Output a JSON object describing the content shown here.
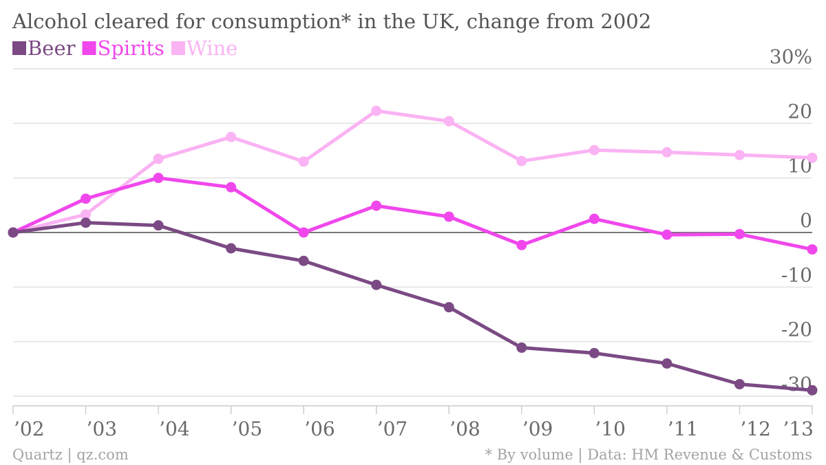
{
  "chart_data": {
    "type": "line",
    "title": "Alcohol cleared for consumption* in the UK, change from 2002",
    "categories": [
      "’02",
      "’03",
      "’04",
      "’05",
      "’06",
      "’07",
      "’08",
      "’09",
      "’10",
      "’11",
      "’12",
      "’13"
    ],
    "series": [
      {
        "name": "Beer",
        "color": "#7b4a84",
        "values": [
          0,
          1.8,
          1.3,
          -2.9,
          -5.2,
          -9.6,
          -13.7,
          -21.1,
          -22.1,
          -24.0,
          -27.8,
          -28.9
        ]
      },
      {
        "name": "Spirits",
        "color": "#f047ec",
        "values": [
          0,
          6.2,
          10.0,
          8.3,
          0,
          4.9,
          2.9,
          -2.3,
          2.5,
          -0.4,
          -0.3,
          -3.1
        ]
      },
      {
        "name": "Wine",
        "color": "#fab3f3",
        "values": [
          0,
          3.3,
          13.5,
          17.5,
          13.0,
          22.3,
          20.4,
          13.1,
          15.1,
          14.7,
          14.2,
          13.7
        ]
      }
    ],
    "ylim": [
      -30,
      30
    ],
    "yticks": [
      30,
      20,
      10,
      0,
      -10,
      -20,
      -30
    ],
    "ytick_labels": [
      "30%",
      "20",
      "10",
      "0",
      "-10",
      "-20",
      "-30"
    ],
    "y_axis_position": "right",
    "legend_position": "top-left",
    "grid": true,
    "xlabel": "",
    "ylabel": ""
  },
  "footer": {
    "source_left": "Quartz | qz.com",
    "source_right": "* By volume | Data: HM Revenue & Customs"
  }
}
